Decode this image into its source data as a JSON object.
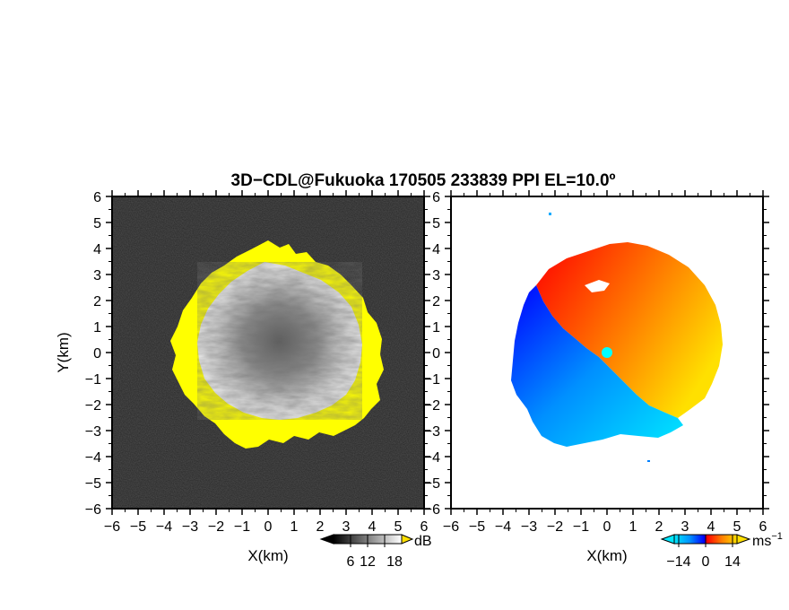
{
  "figure": {
    "title": "3D−CDL@Fukuoka 170505 233839 PPI EL=10.0º"
  },
  "colors": {
    "reflect_dark": "#262626",
    "reflect_light": "#f0f0f0",
    "yellow_ring": "#ffff00",
    "velocity_negative": [
      "#00e8ff",
      "#0090ff",
      "#0000ff"
    ],
    "velocity_positive": [
      "#ff0000",
      "#ff7a00",
      "#ffe000"
    ],
    "center_marker": "#00ffff"
  },
  "chart_data": [
    {
      "type": "heatmap",
      "name": "Reflectivity PPI",
      "title": "",
      "xlabel": "X(km)",
      "ylabel": "Y(km)",
      "xlim": [
        -6,
        6
      ],
      "ylim": [
        -6,
        6
      ],
      "x_ticks": [
        "−6",
        "−5",
        "−4",
        "−3",
        "−2",
        "−1",
        "0",
        "1",
        "2",
        "3",
        "4",
        "5",
        "6"
      ],
      "y_ticks": [
        "6",
        "5",
        "4",
        "3",
        "2",
        "1",
        "0",
        "−1",
        "−2",
        "−3",
        "−4",
        "−5",
        "−6"
      ],
      "echo_radius_km": 3.8,
      "colorbar": {
        "unit": "dB",
        "ticks": [
          "6",
          "12",
          "18"
        ],
        "range": [
          0,
          24
        ]
      }
    },
    {
      "type": "heatmap",
      "name": "Doppler velocity PPI",
      "title": "",
      "xlabel": "X(km)",
      "ylabel": "",
      "xlim": [
        -6,
        6
      ],
      "ylim": [
        -6,
        6
      ],
      "x_ticks": [
        "−6",
        "−5",
        "−4",
        "−3",
        "−2",
        "−1",
        "0",
        "1",
        "2",
        "3",
        "4",
        "5",
        "6"
      ],
      "y_ticks": [
        "6",
        "5",
        "4",
        "3",
        "2",
        "1",
        "0",
        "−1",
        "−2",
        "−3",
        "−4",
        "−5",
        "−6"
      ],
      "echo_radius_km": 4.2,
      "colorbar": {
        "unit": "ms",
        "unit_exp": "−1",
        "ticks": [
          "−14",
          "0",
          "14"
        ],
        "range": [
          -21,
          21
        ]
      }
    }
  ]
}
